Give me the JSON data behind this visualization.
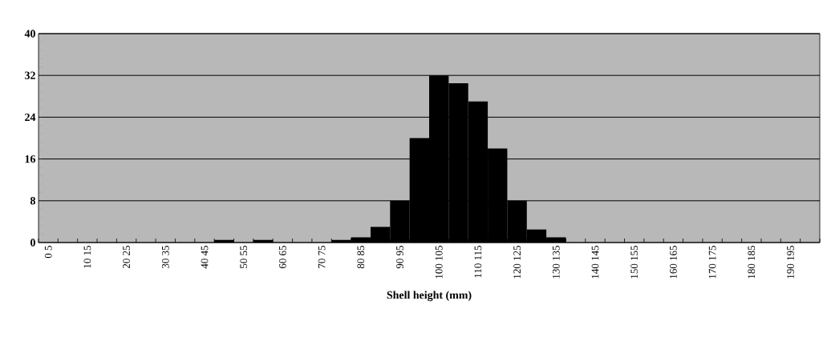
{
  "chart_data": {
    "type": "bar",
    "xlabel": "Shell height (mm)",
    "categories": [
      "0 5",
      null,
      "10 15",
      null,
      "20 25",
      null,
      "30 35",
      null,
      "40 45",
      null,
      "50 55",
      null,
      "60 65",
      null,
      "70 75",
      null,
      "80 85",
      null,
      "90 95",
      null,
      "100 105",
      null,
      "110 115",
      null,
      "120 125",
      null,
      "130 135",
      null,
      "140 145",
      null,
      "150 155",
      null,
      "160 165",
      null,
      "170 175",
      null,
      "180 185",
      null,
      "190 195",
      null
    ],
    "values": [
      0,
      0,
      0,
      0,
      0,
      0,
      0,
      0,
      0,
      0.5,
      0,
      0.5,
      0,
      0,
      0,
      0.5,
      1,
      3,
      8,
      20,
      32,
      30.5,
      27,
      18,
      8,
      2.5,
      1,
      0,
      0,
      0,
      0,
      0,
      0,
      0,
      0,
      0,
      0,
      0,
      0,
      0
    ],
    "color": "#000000",
    "ylim": [
      0,
      40
    ],
    "yticks": [
      0,
      8,
      16,
      24,
      32,
      40
    ],
    "grid": "y"
  }
}
